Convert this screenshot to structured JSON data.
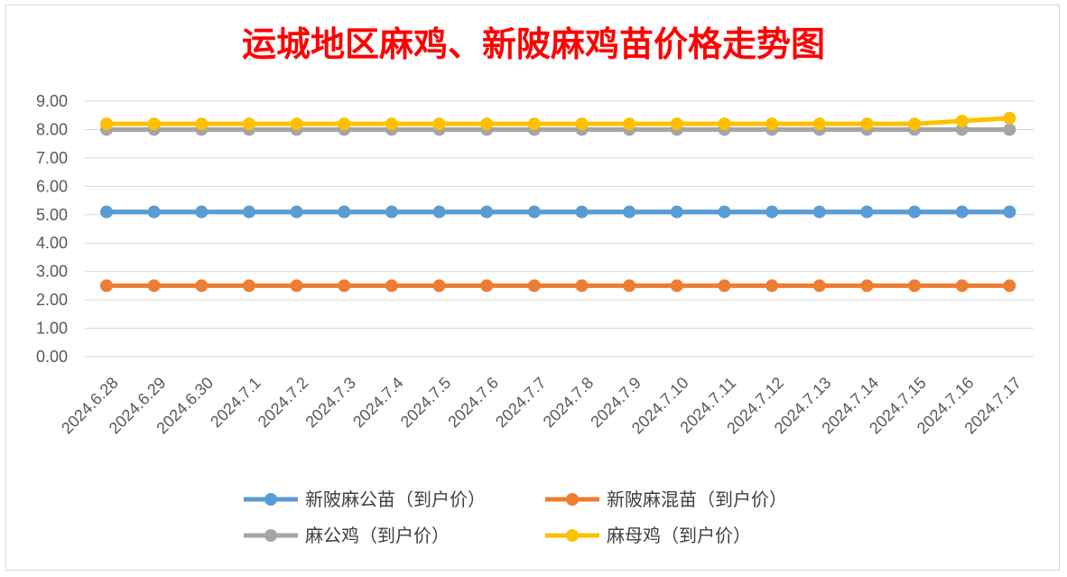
{
  "chart_data": {
    "type": "line",
    "title": "运城地区麻鸡、新陂麻鸡苗价格走势图",
    "xlabel": "",
    "ylabel": "",
    "x": [
      "2024.6.28",
      "2024.6.29",
      "2024.6.30",
      "2024.7.1",
      "2024.7.2",
      "2024.7.3",
      "2024.7.4",
      "2024.7.5",
      "2024.7.6",
      "2024.7.7",
      "2024.7.8",
      "2024.7.9",
      "2024.7.10",
      "2024.7.11",
      "2024.7.12",
      "2024.7.13",
      "2024.7.14",
      "2024.7.15",
      "2024.7.16",
      "2024.7.17"
    ],
    "ylim": [
      0,
      9
    ],
    "yticks": [
      "0.00",
      "1.00",
      "2.00",
      "3.00",
      "4.00",
      "5.00",
      "6.00",
      "7.00",
      "8.00",
      "9.00"
    ],
    "grid": true,
    "legend_position": "bottom",
    "series": [
      {
        "name": "新陂麻公苗（到户价）",
        "color": "#5b9bd5",
        "values": [
          5.1,
          5.1,
          5.1,
          5.1,
          5.1,
          5.1,
          5.1,
          5.1,
          5.1,
          5.1,
          5.1,
          5.1,
          5.1,
          5.1,
          5.1,
          5.1,
          5.1,
          5.1,
          5.1,
          5.1
        ]
      },
      {
        "name": "新陂麻混苗（到户价）",
        "color": "#ed7d31",
        "values": [
          2.5,
          2.5,
          2.5,
          2.5,
          2.5,
          2.5,
          2.5,
          2.5,
          2.5,
          2.5,
          2.5,
          2.5,
          2.5,
          2.5,
          2.5,
          2.5,
          2.5,
          2.5,
          2.5,
          2.5
        ]
      },
      {
        "name": "麻公鸡（到户价）",
        "color": "#a5a5a5",
        "values": [
          8.0,
          8.0,
          8.0,
          8.0,
          8.0,
          8.0,
          8.0,
          8.0,
          8.0,
          8.0,
          8.0,
          8.0,
          8.0,
          8.0,
          8.0,
          8.0,
          8.0,
          8.0,
          8.0,
          8.0
        ]
      },
      {
        "name": "麻母鸡（到户价）",
        "color": "#ffc000",
        "values": [
          8.2,
          8.2,
          8.2,
          8.2,
          8.2,
          8.2,
          8.2,
          8.2,
          8.2,
          8.2,
          8.2,
          8.2,
          8.2,
          8.2,
          8.2,
          8.2,
          8.2,
          8.2,
          8.3,
          8.4
        ]
      }
    ]
  }
}
